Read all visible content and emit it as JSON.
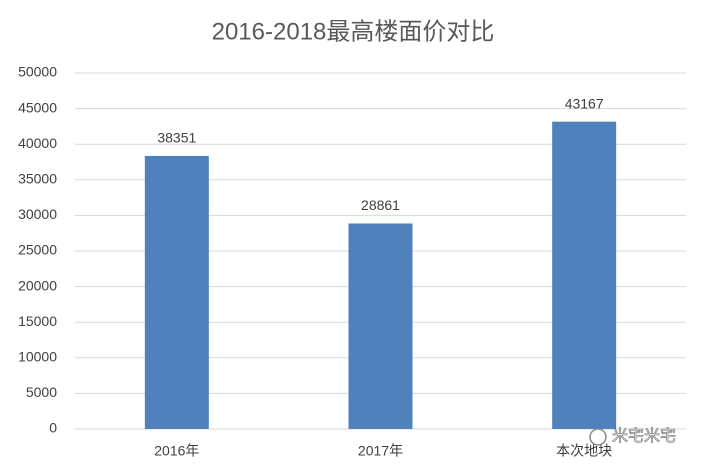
{
  "chart_data": {
    "type": "bar",
    "title": "2016-2018最高楼面价对比",
    "categories": [
      "2016年",
      "2017年",
      "本次地块"
    ],
    "values": [
      38351,
      28861,
      43167
    ],
    "color": "#4f81bd",
    "ylim": [
      0,
      50000
    ],
    "yticks": [
      0,
      5000,
      10000,
      15000,
      20000,
      25000,
      30000,
      35000,
      40000,
      45000,
      50000
    ],
    "grid": true,
    "watermark": "米宅米宅"
  }
}
